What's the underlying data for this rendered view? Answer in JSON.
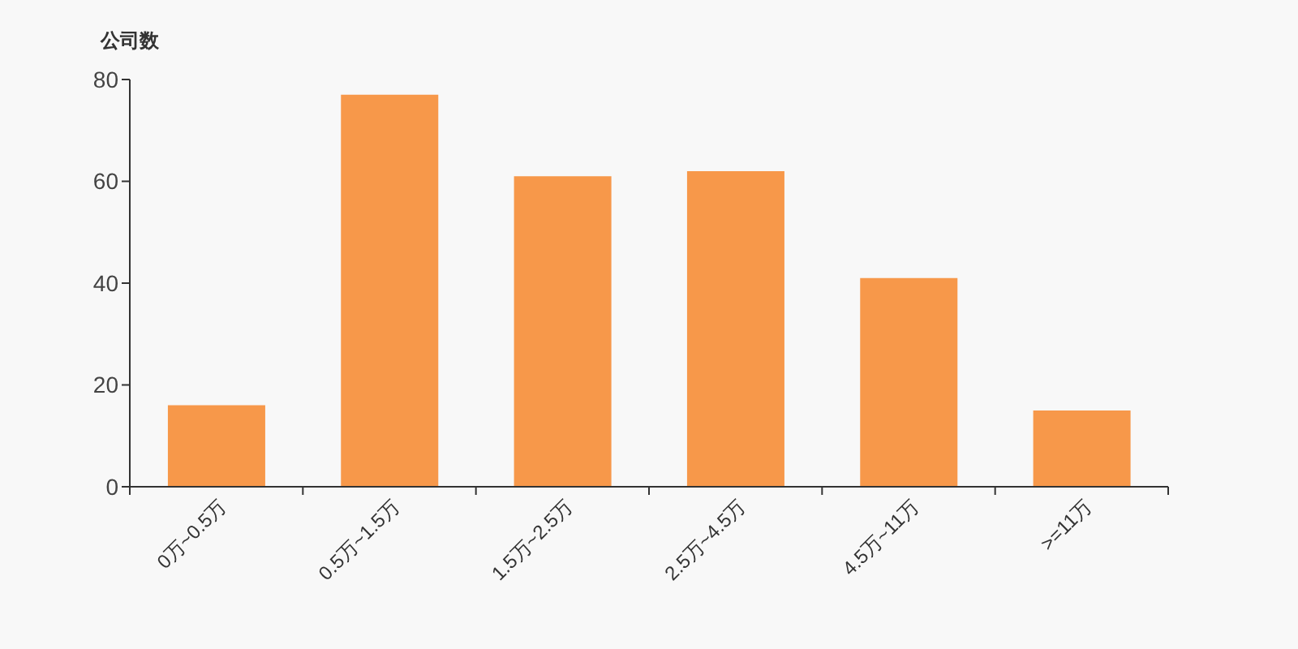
{
  "chart_data": {
    "type": "bar",
    "ylabel": "公司数",
    "categories": [
      "0万~0.5万",
      "0.5万~1.5万",
      "1.5万~2.5万",
      "2.5万~4.5万",
      "4.5万~11万",
      ">=11万"
    ],
    "values": [
      16,
      77,
      61,
      62,
      41,
      15
    ],
    "color": "#f7984a",
    "ylim": [
      0,
      80
    ],
    "yticks": [
      0,
      20,
      40,
      60,
      80
    ]
  }
}
